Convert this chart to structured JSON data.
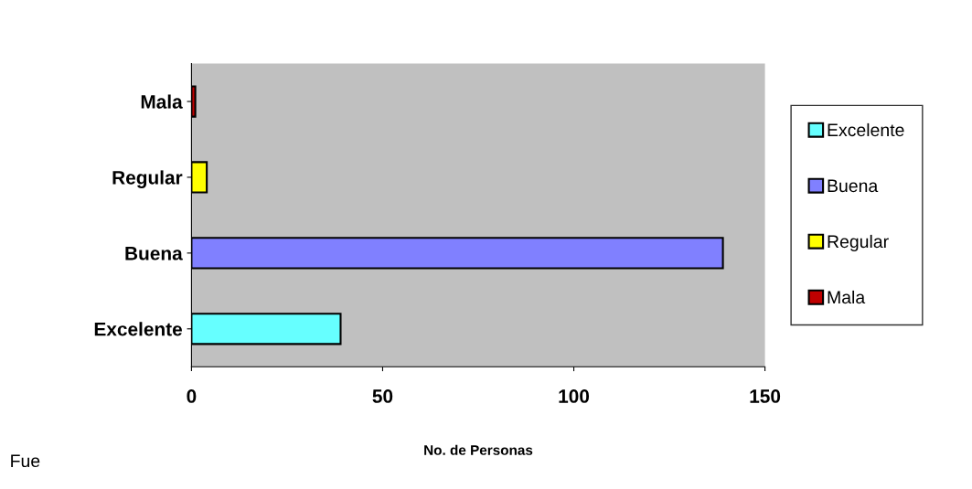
{
  "chart_data": {
    "type": "bar",
    "orientation": "horizontal",
    "stacked": true,
    "xlabel": "No. de Personas",
    "categories": [
      "Mala",
      "Regular",
      "Buena",
      "Excelente"
    ],
    "series": [
      {
        "name": "Excelente",
        "color": "#66ffff",
        "values": [
          null,
          null,
          null,
          39
        ]
      },
      {
        "name": "Buena",
        "color": "#8080ff",
        "values": [
          null,
          null,
          139,
          null
        ]
      },
      {
        "name": "Regular",
        "color": "#ffff00",
        "values": [
          null,
          4,
          null,
          null
        ]
      },
      {
        "name": "Mala",
        "color": "#c00000",
        "values": [
          1,
          null,
          null,
          null
        ]
      }
    ],
    "xlim": [
      0,
      150
    ],
    "xticks": [
      0,
      50,
      100,
      150
    ],
    "grid": false,
    "legend": "right",
    "annotations": [
      "Fue"
    ]
  }
}
